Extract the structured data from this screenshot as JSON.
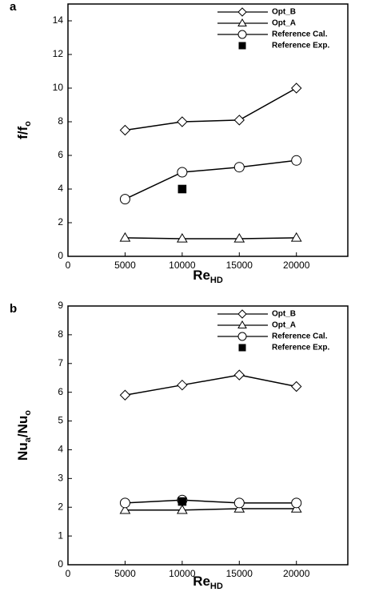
{
  "chart_data": [
    {
      "type": "line",
      "panel": "a",
      "ylabel": [
        "f/f",
        "o"
      ],
      "xlabel": [
        "Re",
        "HD"
      ],
      "x": [
        5000,
        10000,
        15000,
        20000
      ],
      "xlim": [
        0,
        24500
      ],
      "xticks": [
        0,
        5000,
        10000,
        15000,
        20000
      ],
      "ylim": [
        0,
        15
      ],
      "yticks": [
        0,
        2,
        4,
        6,
        8,
        10,
        12,
        14
      ],
      "series": [
        {
          "name": "Opt_B",
          "color": "#000000",
          "marker": "diamond",
          "line": true,
          "values": [
            7.5,
            8.0,
            8.1,
            10.0
          ]
        },
        {
          "name": "Opt_A",
          "color": "#000000",
          "marker": "triangle",
          "line": true,
          "values": [
            1.1,
            1.05,
            1.05,
            1.1
          ]
        },
        {
          "name": "Reference Cal.",
          "color": "#000000",
          "marker": "circle",
          "line": true,
          "values": [
            3.4,
            5.0,
            5.3,
            5.7
          ]
        },
        {
          "name": "Reference Exp.",
          "color": "#000000",
          "marker": "square",
          "line": false,
          "values": [
            null,
            4.0,
            null,
            null
          ]
        }
      ]
    },
    {
      "type": "line",
      "panel": "b",
      "ylabel": [
        "Nu",
        "a",
        "/Nu",
        "o"
      ],
      "xlabel": [
        "Re",
        "HD"
      ],
      "x": [
        5000,
        10000,
        15000,
        20000
      ],
      "xlim": [
        0,
        24500
      ],
      "xticks": [
        0,
        5000,
        10000,
        15000,
        20000
      ],
      "ylim": [
        0,
        9
      ],
      "yticks": [
        0,
        1,
        2,
        3,
        4,
        5,
        6,
        7,
        8,
        9
      ],
      "series": [
        {
          "name": "Opt_B",
          "color": "#000000",
          "marker": "diamond",
          "line": true,
          "values": [
            5.9,
            6.25,
            6.6,
            6.2
          ]
        },
        {
          "name": "Opt_A",
          "color": "#000000",
          "marker": "triangle",
          "line": true,
          "values": [
            1.9,
            1.9,
            1.95,
            1.95
          ]
        },
        {
          "name": "Reference Cal.",
          "color": "#000000",
          "marker": "circle",
          "line": true,
          "values": [
            2.15,
            2.25,
            2.15,
            2.15
          ]
        },
        {
          "name": "Reference Exp.",
          "color": "#000000",
          "marker": "square",
          "line": false,
          "values": [
            null,
            2.2,
            null,
            null
          ]
        }
      ]
    }
  ]
}
